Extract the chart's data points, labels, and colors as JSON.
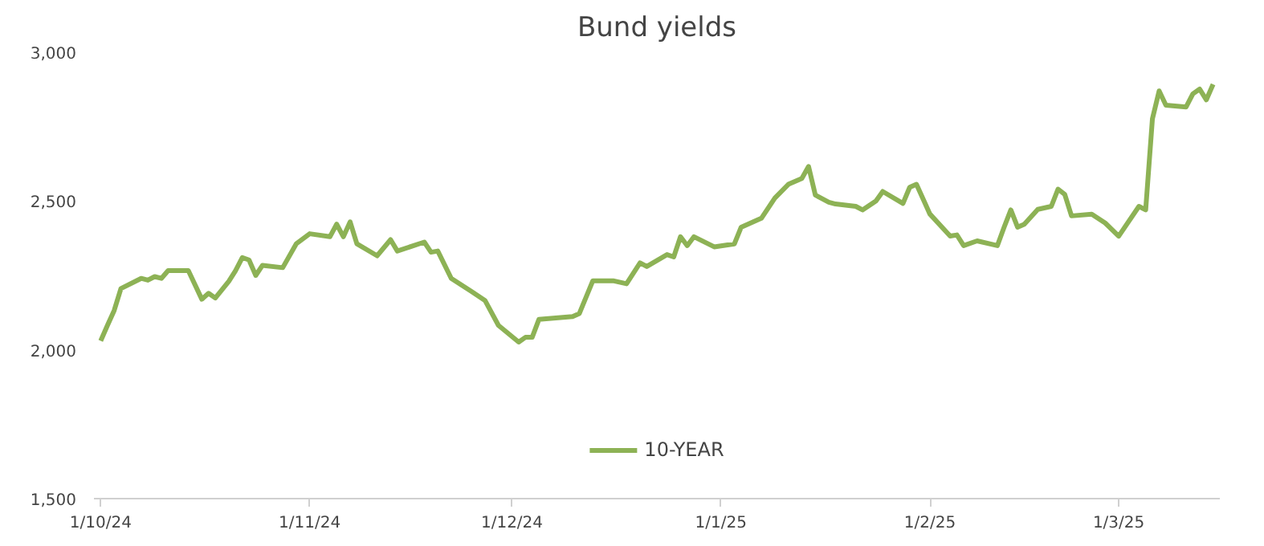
{
  "chart_data": {
    "type": "line",
    "title": "Bund yields",
    "x": [
      "2024-10-01",
      "2024-10-02",
      "2024-10-03",
      "2024-10-04",
      "2024-10-07",
      "2024-10-08",
      "2024-10-09",
      "2024-10-10",
      "2024-10-11",
      "2024-10-14",
      "2024-10-16",
      "2024-10-17",
      "2024-10-18",
      "2024-10-20",
      "2024-10-21",
      "2024-10-22",
      "2024-10-23",
      "2024-10-24",
      "2024-10-25",
      "2024-10-28",
      "2024-10-30",
      "2024-11-01",
      "2024-11-04",
      "2024-11-05",
      "2024-11-06",
      "2024-11-07",
      "2024-11-08",
      "2024-11-11",
      "2024-11-13",
      "2024-11-14",
      "2024-11-18",
      "2024-11-19",
      "2024-11-20",
      "2024-11-22",
      "2024-11-25",
      "2024-11-27",
      "2024-11-29",
      "2024-12-02",
      "2024-12-03",
      "2024-12-04",
      "2024-12-05",
      "2024-12-10",
      "2024-12-11",
      "2024-12-13",
      "2024-12-16",
      "2024-12-18",
      "2024-12-20",
      "2024-12-21",
      "2024-12-24",
      "2024-12-25",
      "2024-12-26",
      "2024-12-27",
      "2024-12-28",
      "2024-12-31",
      "2025-01-03",
      "2025-01-04",
      "2025-01-07",
      "2025-01-09",
      "2025-01-11",
      "2025-01-13",
      "2025-01-14",
      "2025-01-15",
      "2025-01-17",
      "2025-01-18",
      "2025-01-21",
      "2025-01-22",
      "2025-01-24",
      "2025-01-25",
      "2025-01-28",
      "2025-01-29",
      "2025-01-30",
      "2025-02-01",
      "2025-02-04",
      "2025-02-05",
      "2025-02-06",
      "2025-02-08",
      "2025-02-11",
      "2025-02-12",
      "2025-02-13",
      "2025-02-14",
      "2025-02-15",
      "2025-02-17",
      "2025-02-19",
      "2025-02-20",
      "2025-02-21",
      "2025-02-22",
      "2025-02-25",
      "2025-02-27",
      "2025-03-01",
      "2025-03-04",
      "2025-03-05",
      "2025-03-06",
      "2025-03-07",
      "2025-03-08",
      "2025-03-11",
      "2025-03-12",
      "2025-03-13",
      "2025-03-14",
      "2025-03-15"
    ],
    "series": [
      {
        "name": "10-YEAR",
        "color": "#8db255",
        "values": [
          2030,
          2082,
          2132,
          2206,
          2240,
          2234,
          2246,
          2240,
          2266,
          2266,
          2170,
          2190,
          2174,
          2230,
          2266,
          2310,
          2302,
          2250,
          2284,
          2276,
          2356,
          2390,
          2380,
          2422,
          2380,
          2430,
          2356,
          2316,
          2370,
          2332,
          2362,
          2328,
          2332,
          2240,
          2196,
          2166,
          2082,
          2026,
          2042,
          2042,
          2102,
          2112,
          2122,
          2232,
          2232,
          2222,
          2292,
          2280,
          2320,
          2312,
          2380,
          2350,
          2380,
          2346,
          2356,
          2412,
          2442,
          2510,
          2556,
          2576,
          2616,
          2520,
          2496,
          2490,
          2482,
          2470,
          2500,
          2532,
          2492,
          2546,
          2556,
          2456,
          2382,
          2386,
          2350,
          2366,
          2350,
          2412,
          2470,
          2412,
          2422,
          2472,
          2482,
          2540,
          2522,
          2450,
          2456,
          2426,
          2382,
          2482,
          2470,
          2776,
          2870,
          2822,
          2816,
          2860,
          2876,
          2840,
          2892
        ]
      }
    ],
    "xlim": [
      "2024-09-30",
      "2025-03-16"
    ],
    "xticks": [
      {
        "value": "2024-10-01",
        "label": "1/10/24"
      },
      {
        "value": "2024-11-01",
        "label": "1/11/24"
      },
      {
        "value": "2024-12-01",
        "label": "1/12/24"
      },
      {
        "value": "2025-01-01",
        "label": "1/1/25"
      },
      {
        "value": "2025-02-01",
        "label": "1/2/25"
      },
      {
        "value": "2025-03-01",
        "label": "1/3/25"
      }
    ],
    "ylim": [
      1500,
      3000
    ],
    "yticks": [
      {
        "value": 1500,
        "label": "1,500"
      },
      {
        "value": 2000,
        "label": "2,000"
      },
      {
        "value": 2500,
        "label": "2,500"
      },
      {
        "value": 3000,
        "label": "3,000"
      }
    ],
    "grid": false,
    "legend": "bottom",
    "marker": "none",
    "line_style": "solid"
  }
}
